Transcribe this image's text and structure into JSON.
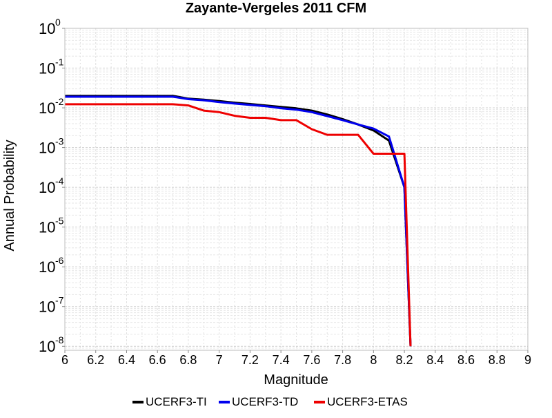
{
  "chart_data": {
    "type": "line",
    "title": "Zayante-Vergeles 2011 CFM",
    "xlabel": "Magnitude",
    "ylabel": "Annual Probability",
    "xlim": [
      6,
      9
    ],
    "ylim_log10": [
      -8.1,
      0
    ],
    "y_scale": "log",
    "x_ticks": [
      "6",
      "6.2",
      "6.4",
      "6.6",
      "6.8",
      "7",
      "7.2",
      "7.4",
      "7.6",
      "7.8",
      "8",
      "8.2",
      "8.4",
      "8.6",
      "8.8",
      "9"
    ],
    "y_ticks": [
      {
        "base": "10",
        "exp": "0",
        "log": 0
      },
      {
        "base": "10",
        "exp": "-1",
        "log": -1
      },
      {
        "base": "10",
        "exp": "-2",
        "log": -2
      },
      {
        "base": "10",
        "exp": "-3",
        "log": -3
      },
      {
        "base": "10",
        "exp": "-4",
        "log": -4
      },
      {
        "base": "10",
        "exp": "-5",
        "log": -5
      },
      {
        "base": "10",
        "exp": "-6",
        "log": -6
      },
      {
        "base": "10",
        "exp": "-7",
        "log": -7
      },
      {
        "base": "10",
        "exp": "-8",
        "log": -8
      }
    ],
    "grid": true,
    "legend_position": "bottom",
    "series": [
      {
        "name": "UCERF3-TI",
        "color": "#000000",
        "x": [
          6.0,
          6.7,
          6.8,
          6.9,
          7.0,
          7.1,
          7.2,
          7.3,
          7.4,
          7.5,
          7.6,
          7.7,
          7.8,
          7.9,
          8.0,
          8.1,
          8.2,
          8.24
        ],
        "y": [
          0.02,
          0.02,
          0.017,
          0.016,
          0.0148,
          0.0135,
          0.0125,
          0.0115,
          0.0105,
          0.0097,
          0.0085,
          0.0068,
          0.0052,
          0.0038,
          0.0027,
          0.0015,
          0.0001,
          1e-08
        ]
      },
      {
        "name": "UCERF3-TD",
        "color": "#0000ee",
        "x": [
          6.0,
          6.7,
          6.8,
          6.9,
          7.0,
          7.1,
          7.2,
          7.3,
          7.4,
          7.5,
          7.6,
          7.7,
          7.8,
          7.9,
          8.0,
          8.1,
          8.2,
          8.24
        ],
        "y": [
          0.019,
          0.019,
          0.0165,
          0.0155,
          0.014,
          0.0128,
          0.0118,
          0.011,
          0.0098,
          0.009,
          0.0078,
          0.0062,
          0.0049,
          0.0038,
          0.003,
          0.0019,
          0.0001,
          1e-08
        ]
      },
      {
        "name": "UCERF3-ETAS",
        "color": "#ee0000",
        "x": [
          6.0,
          6.7,
          6.8,
          6.9,
          7.0,
          7.1,
          7.2,
          7.3,
          7.4,
          7.5,
          7.6,
          7.7,
          7.8,
          7.9,
          8.0,
          8.1,
          8.2,
          8.24
        ],
        "y": [
          0.0123,
          0.0123,
          0.0115,
          0.0085,
          0.0078,
          0.0063,
          0.0056,
          0.0056,
          0.0049,
          0.0049,
          0.0029,
          0.0021,
          0.0021,
          0.0021,
          0.0007,
          0.0007,
          0.0007,
          1e-08
        ]
      }
    ]
  }
}
